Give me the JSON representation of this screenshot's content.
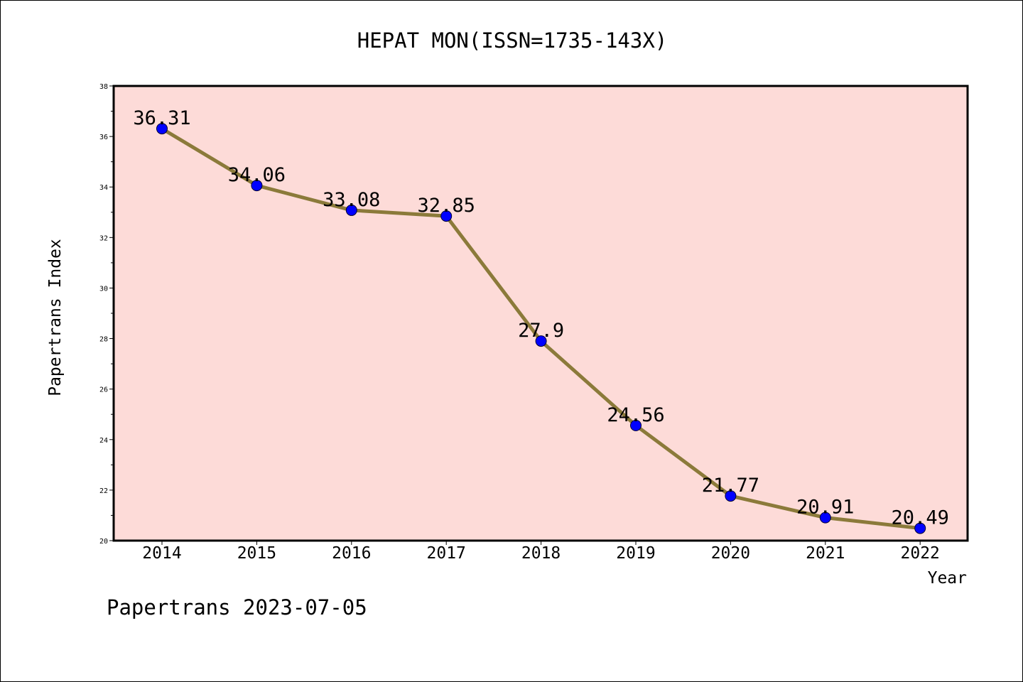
{
  "chart_data": {
    "type": "line",
    "title": "HEPAT MON(ISSN=1735-143X)",
    "xlabel": "Year",
    "ylabel": "Papertrans Index",
    "x": [
      "2014",
      "2015",
      "2016",
      "2017",
      "2018",
      "2019",
      "2020",
      "2021",
      "2022"
    ],
    "series": [
      {
        "values": [
          36.31,
          34.06,
          33.08,
          32.85,
          27.9,
          24.56,
          21.77,
          20.91,
          20.49
        ],
        "labels": [
          "36.31",
          "34.06",
          "33.08",
          "32.85",
          "27.9",
          "24.56",
          "21.77",
          "20.91",
          "20.49"
        ]
      }
    ],
    "ylim": [
      20,
      38
    ],
    "yticks": [
      "20",
      "22",
      "24",
      "26",
      "28",
      "30",
      "32",
      "34",
      "36",
      "38"
    ],
    "grid": false,
    "legend": "none"
  },
  "footer": {
    "text": "Papertrans 2023-07-05"
  },
  "colors": {
    "plot_background": "#fddbd8",
    "line": "#8b7a3a",
    "marker": "#0000ff",
    "axis": "#000000"
  }
}
